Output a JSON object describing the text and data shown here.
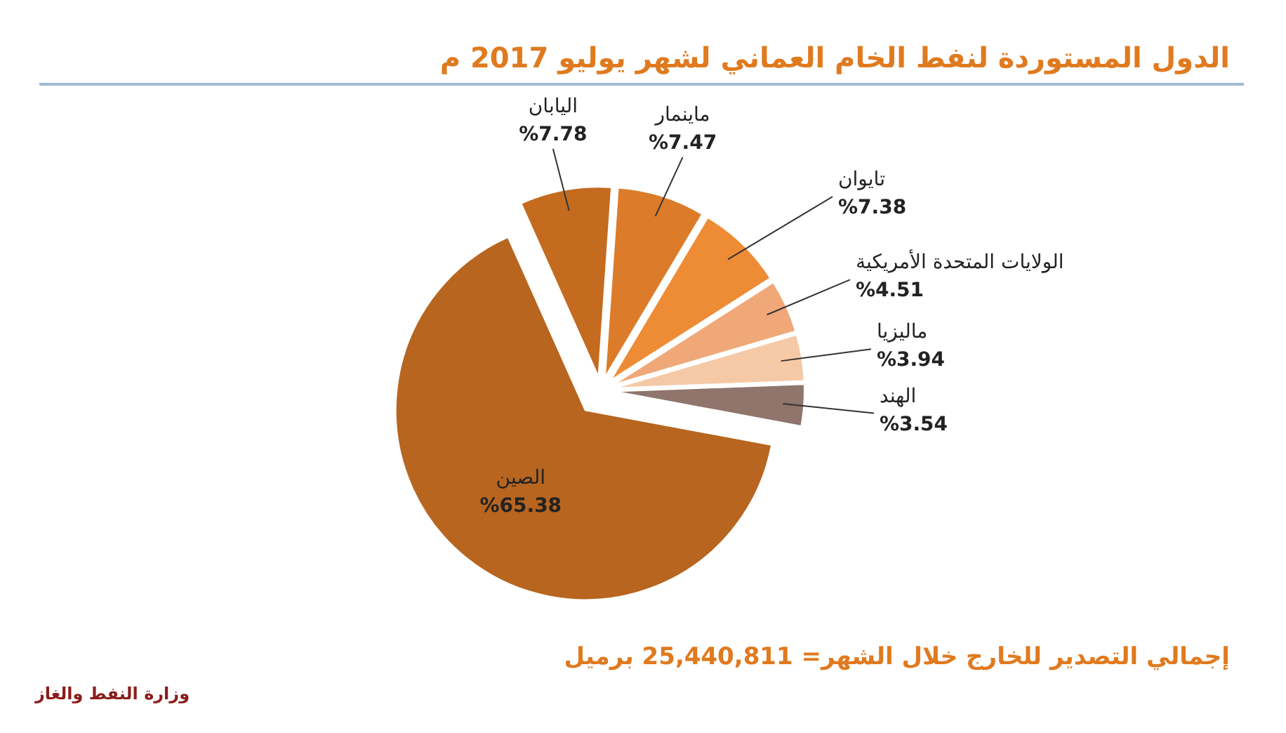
{
  "chart_data": {
    "type": "pie",
    "title": "الدول المستوردة لنفط الخام العماني لشهر يوليو 2017 م",
    "categories": [
      "الصين",
      "اليابان",
      "ماينمار",
      "تايوان",
      "الولايات المتحدة الأمريكية",
      "ماليزيا",
      "الهند"
    ],
    "values": [
      65.38,
      7.78,
      7.47,
      7.38,
      4.51,
      3.94,
      3.54
    ],
    "colors": [
      "#b8651f",
      "#c46b1f",
      "#dc7c2a",
      "#ee8c36",
      "#f0a878",
      "#f6c9a6",
      "#8f756c"
    ],
    "value_labels": [
      "%65.38",
      "%7.78",
      "%7.47",
      "%7.38",
      "%4.51",
      "%3.94",
      "%3.54"
    ],
    "annotations": [
      "إجمالي التصدير للخارج خلال الشهر= 25,440,811 برميل",
      "وزارة النفط والغاز"
    ]
  }
}
